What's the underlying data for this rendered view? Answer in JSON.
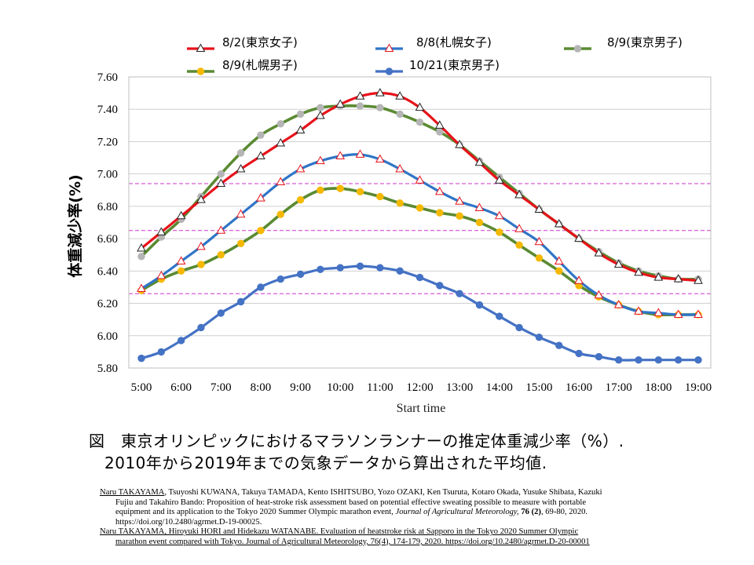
{
  "chart_data": {
    "type": "line",
    "ylabel": "体重減少率(%)",
    "xlabel": "Start time",
    "ylim": [
      5.8,
      7.6
    ],
    "yticks": [
      "5.80",
      "6.00",
      "6.20",
      "6.40",
      "6.60",
      "6.80",
      "7.00",
      "7.20",
      "7.40",
      "7.60"
    ],
    "yticks_values": [
      5.8,
      6.0,
      6.2,
      6.4,
      6.6,
      6.8,
      7.0,
      7.2,
      7.4,
      7.6
    ],
    "categories": [
      "5:00",
      "6:00",
      "7:00",
      "8:00",
      "9:00",
      "10:00",
      "11:00",
      "12:00",
      "13:00",
      "14:00",
      "15:00",
      "16:00",
      "17:00",
      "18:00",
      "19:00"
    ],
    "x": [
      5.0,
      5.5,
      6.0,
      6.5,
      7.0,
      7.5,
      8.0,
      8.5,
      9.0,
      9.5,
      10.0,
      10.5,
      11.0,
      11.5,
      12.0,
      12.5,
      13.0,
      13.5,
      14.0,
      14.5,
      15.0,
      15.5,
      16.0,
      16.5,
      17.0,
      17.5,
      18.0,
      18.5,
      19.0
    ],
    "reference_lines": [
      6.94,
      6.65,
      6.26
    ],
    "grid": "horizontal",
    "legend_position": "top",
    "series": [
      {
        "name": "8/2(東京女子)",
        "color": "#e8121a",
        "line_width": 3.2,
        "marker": "triangle",
        "marker_fill": "#ffffff",
        "marker_stroke": "#222222",
        "values": [
          6.54,
          6.64,
          6.74,
          6.84,
          6.94,
          7.03,
          7.11,
          7.19,
          7.27,
          7.36,
          7.43,
          7.48,
          7.5,
          7.48,
          7.41,
          7.3,
          7.18,
          7.07,
          6.96,
          6.87,
          6.78,
          6.69,
          6.6,
          6.51,
          6.44,
          6.39,
          6.36,
          6.35,
          6.34
        ]
      },
      {
        "name": "8/8(札幌女子)",
        "color": "#2f75c7",
        "line_width": 3.2,
        "marker": "triangle",
        "marker_fill": "#ffffff",
        "marker_stroke": "#e8121a",
        "values": [
          6.29,
          6.37,
          6.46,
          6.55,
          6.65,
          6.75,
          6.85,
          6.95,
          7.03,
          7.08,
          7.11,
          7.12,
          7.09,
          7.03,
          6.96,
          6.89,
          6.83,
          6.79,
          6.74,
          6.66,
          6.58,
          6.46,
          6.34,
          6.25,
          6.19,
          6.15,
          6.14,
          6.13,
          6.13
        ]
      },
      {
        "name": "8/9(東京男子)",
        "color": "#5a8a32",
        "line_width": 3.6,
        "marker": "circle",
        "marker_fill": "#b5b5b5",
        "marker_stroke": "#b5b5b5",
        "values": [
          6.49,
          6.61,
          6.72,
          6.86,
          7.0,
          7.13,
          7.24,
          7.31,
          7.37,
          7.41,
          7.42,
          7.42,
          7.41,
          7.37,
          7.32,
          7.26,
          7.18,
          7.08,
          6.98,
          6.88,
          6.78,
          6.69,
          6.6,
          6.52,
          6.45,
          6.4,
          6.37,
          6.35,
          6.35
        ]
      },
      {
        "name": "8/9(札幌男子)",
        "color": "#5a8a32",
        "line_width": 3.6,
        "marker": "circle",
        "marker_fill": "#f5b800",
        "marker_stroke": "#f5b800",
        "values": [
          6.28,
          6.35,
          6.4,
          6.44,
          6.5,
          6.57,
          6.65,
          6.75,
          6.84,
          6.9,
          6.91,
          6.89,
          6.86,
          6.82,
          6.79,
          6.76,
          6.74,
          6.7,
          6.64,
          6.56,
          6.48,
          6.4,
          6.31,
          6.24,
          6.19,
          6.15,
          6.13,
          6.13,
          6.13
        ]
      },
      {
        "name": "10/21(東京男子)",
        "color": "#4472c4",
        "line_width": 3.2,
        "marker": "circle",
        "marker_fill": "#4472c4",
        "marker_stroke": "#4472c4",
        "values": [
          5.86,
          5.9,
          5.97,
          6.05,
          6.14,
          6.21,
          6.3,
          6.35,
          6.38,
          6.41,
          6.42,
          6.43,
          6.42,
          6.4,
          6.36,
          6.31,
          6.26,
          6.19,
          6.12,
          6.05,
          5.99,
          5.94,
          5.89,
          5.87,
          5.85,
          5.85,
          5.85,
          5.85,
          5.85
        ]
      }
    ]
  },
  "caption": {
    "line1": "図　東京オリンピックにおけるマラソンランナーの推定体重減少率（%）.",
    "line2": "2010年から2019年までの気象データから算出された平均値."
  },
  "references": {
    "ref1_author_ul": "Naru TAKAYAMA",
    "ref1_authors_rest": ", Tsuyoshi KUWANA, Takuya TAMADA, Kento ISHITSUBO, Yozo OZAKI, Ken Tsuruta, Kotaro Okada, Yusuke Shibata, Kazuki",
    "ref1_line2": "Fujiu and Takahiro Bando: Proposition of heat-stroke risk assessment based on potential effective sweating possible to measure with portable",
    "ref1_line3_pre": "equipment and its application to the Tokyo 2020 Summer Olympic marathon event, ",
    "ref1_journal": "Journal of Agricultural Meteorology,",
    "ref1_volume": " 76 (2)",
    "ref1_pages": ", 69-80, 2020.",
    "ref1_doi": "https://doi.org/10.2480/agrmet.D-19-00025.",
    "ref2_line1": "Naru TAKAYAMA, Hiroyuki HORI and Hidekazu WATANABE. Evaluation of heatstroke risk at Sapporo in the Tokyo 2020 Summer Olympic",
    "ref2_line2": "marathon event compared with Tokyo. Journal of Agricultural Meteorology, 76(4), 174-179, 2020. https://doi.org/10.2480/agrmet.D-20-00001"
  }
}
